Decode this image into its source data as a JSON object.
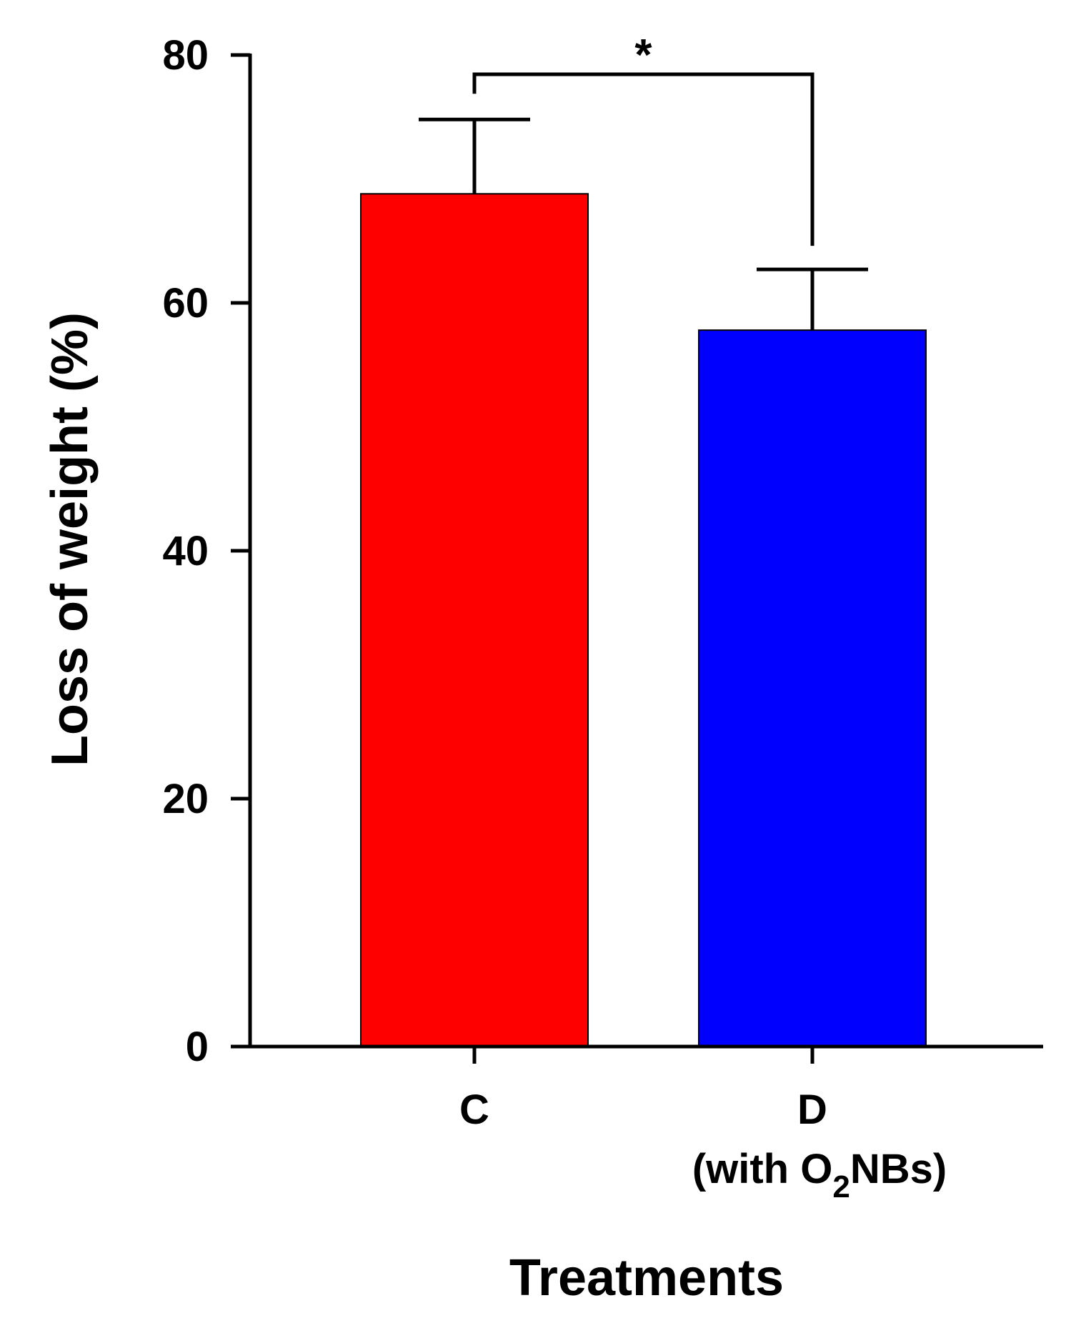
{
  "chart_data": {
    "type": "bar",
    "title": "",
    "xlabel": "Treatments",
    "ylabel": "Loss of weight (%)",
    "ylim": [
      0,
      80
    ],
    "yticks": [
      0,
      20,
      40,
      60,
      80
    ],
    "categories": [
      {
        "label": "C",
        "sublabel_parts": []
      },
      {
        "label": "D",
        "sublabel_parts": [
          "(with O",
          "2",
          "NBs)"
        ]
      }
    ],
    "values": [
      68.8,
      57.8
    ],
    "errors": [
      6.0,
      4.9
    ],
    "colors": [
      "#ff0000",
      "#0000ff"
    ],
    "significance": {
      "between": [
        0,
        1
      ],
      "label": "*"
    }
  }
}
